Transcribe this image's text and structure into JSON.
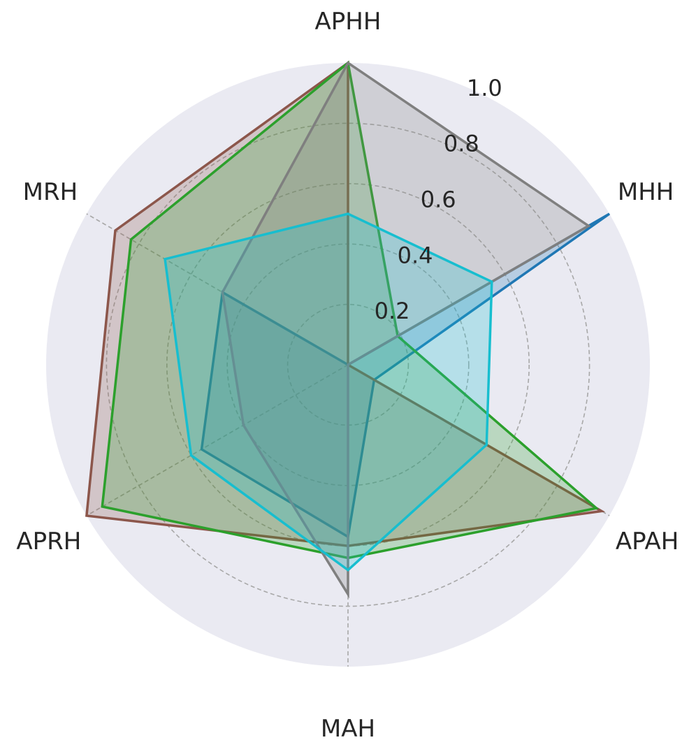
{
  "chart_data": {
    "type": "radar",
    "axes": [
      "APHH",
      "MHH",
      "APAH",
      "MAH",
      "APRH",
      "MRH"
    ],
    "rlim": [
      0,
      1.0
    ],
    "rticks": [
      0.2,
      0.4,
      0.6,
      0.8,
      1.0
    ],
    "rtick_labels": [
      "0.2",
      "0.4",
      "0.6",
      "0.8",
      "1.0"
    ],
    "grid": true,
    "background_color": "#eaeaf2",
    "series": [
      {
        "color": "#1f77b4",
        "values": [
          0.0,
          1.0,
          0.1,
          0.57,
          0.56,
          0.48
        ]
      },
      {
        "color": "#8c564b",
        "values": [
          1.0,
          0.0,
          0.97,
          0.6,
          1.0,
          0.89
        ]
      },
      {
        "color": "#2ca02c",
        "values": [
          1.0,
          0.19,
          0.95,
          0.64,
          0.94,
          0.83
        ]
      },
      {
        "color": "#7f7f7f",
        "values": [
          1.0,
          0.92,
          0.0,
          0.76,
          0.4,
          0.48
        ]
      },
      {
        "color": "#17becf",
        "values": [
          0.5,
          0.55,
          0.53,
          0.68,
          0.6,
          0.7
        ]
      }
    ]
  }
}
